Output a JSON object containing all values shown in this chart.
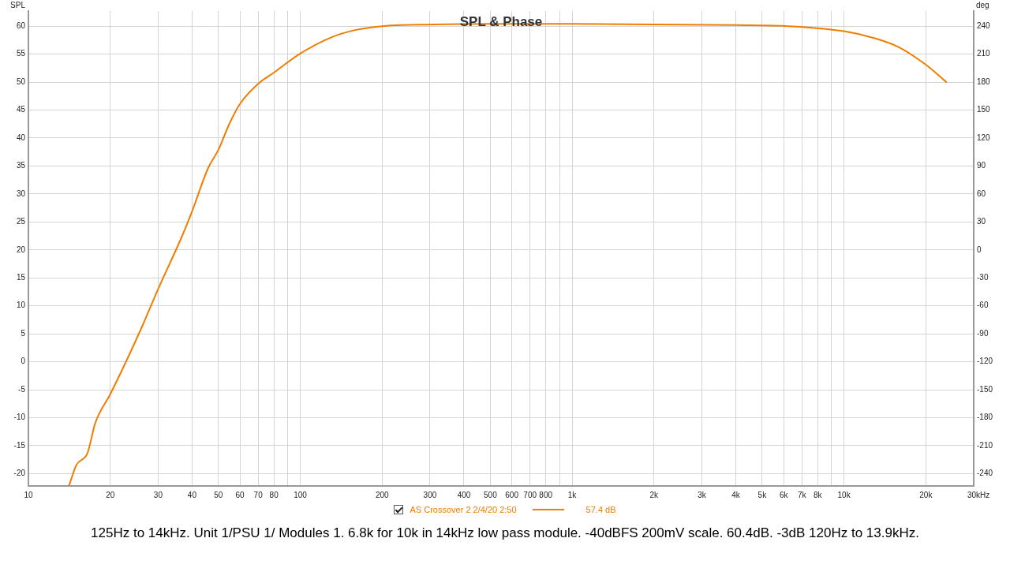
{
  "chart_data": {
    "type": "line",
    "title": "SPL & Phase",
    "ylabel": "SPL",
    "y2label": "deg",
    "log": "x",
    "grid": true,
    "legend": "bottom",
    "marker": "none",
    "line_style": "solid",
    "xlim": [
      10,
      30000
    ],
    "xticks": [
      10,
      20,
      30,
      40,
      50,
      60,
      70,
      80,
      {
        "value": 90,
        "label": null
      },
      100,
      200,
      300,
      400,
      500,
      600,
      700,
      800,
      {
        "value": 900,
        "label": null
      },
      {
        "value": 1000,
        "label": "1k"
      },
      {
        "value": 2000,
        "label": "2k"
      },
      {
        "value": 3000,
        "label": "3k"
      },
      {
        "value": 4000,
        "label": "4k"
      },
      {
        "value": 5000,
        "label": "5k"
      },
      {
        "value": 6000,
        "label": "6k"
      },
      {
        "value": 7000,
        "label": "7k"
      },
      {
        "value": 8000,
        "label": "8k"
      },
      {
        "value": 9000,
        "label": null
      },
      {
        "value": 10000,
        "label": "10k"
      },
      {
        "value": 20000,
        "label": "20k"
      },
      {
        "value": 30000,
        "label": "30k"
      }
    ],
    "xlabel": "Hz",
    "ylim": [
      -22.2,
      62.7
    ],
    "yticks": [
      -20,
      -15,
      -10,
      -5,
      0,
      5,
      10,
      15,
      20,
      25,
      30,
      35,
      40,
      45,
      50,
      55,
      60
    ],
    "y2lim": [
      -253.2,
      256.2
    ],
    "y2ticks": [
      -240,
      -210,
      -180,
      -150,
      -120,
      -90,
      -60,
      -30,
      0,
      30,
      60,
      90,
      120,
      150,
      180,
      210,
      240
    ],
    "series": [
      {
        "name": "AS Crossover 2 2/4/20 2:50",
        "color": "#f07d00",
        "x": [
          14.1,
          15,
          16.5,
          17.6,
          20,
          23,
          26.3,
          30,
          36.7,
          40,
          45.8,
          50,
          54.8,
          60,
          70,
          80,
          100,
          130,
          159,
          200,
          311,
          500,
          1000,
          2000,
          4000,
          6270,
          10000,
          13060,
          15970,
          20000,
          23800
        ],
        "values": [
          -22.2,
          -18.5,
          -16.3,
          -11,
          -5.8,
          0.3,
          6.5,
          13,
          22.4,
          26.9,
          34.6,
          37.9,
          42.5,
          46.1,
          49.7,
          51.7,
          55.1,
          58,
          59.3,
          60,
          60.3,
          60.4,
          60.4,
          60.3,
          60.2,
          60,
          59.1,
          57.8,
          56.2,
          53.1,
          50
        ]
      }
    ],
    "annotations": [
      "57.4 dB",
      "125Hz to 14kHz. Unit 1/PSU 1/ Modules 1. 6.8k for 10k in 14kHz low pass module. -40dBFS 200mV scale. 60.4dB. -3dB 120Hz to 13.9kHz."
    ]
  }
}
